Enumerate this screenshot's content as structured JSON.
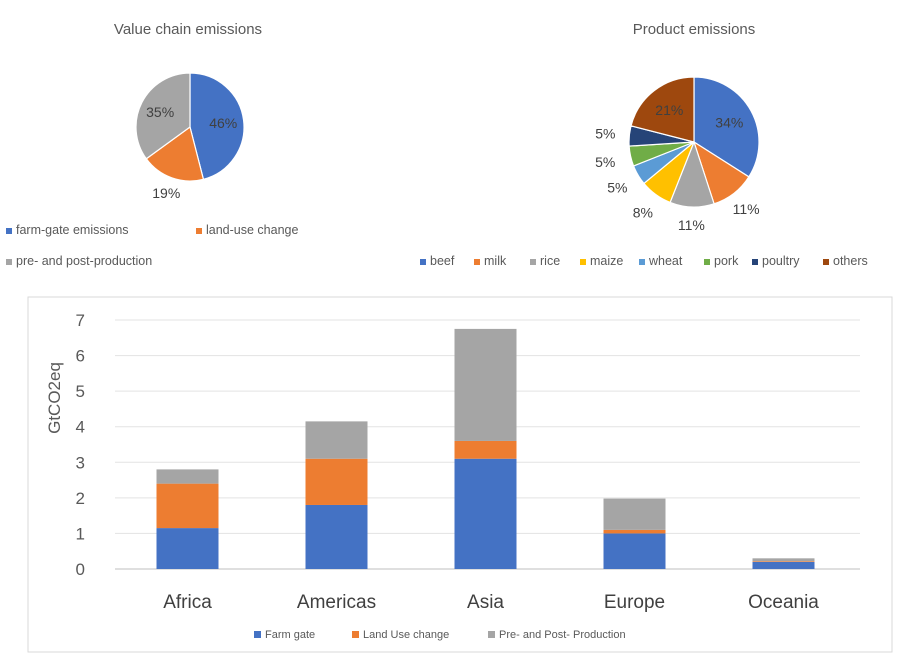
{
  "chart_data": [
    {
      "type": "pie",
      "title": "Value chain emissions",
      "slices": [
        {
          "label": "farm-gate emissions",
          "value": 46,
          "color": "#4472C4"
        },
        {
          "label": "land-use change",
          "value": 19,
          "color": "#ED7D31"
        },
        {
          "label": "pre- and post-production",
          "value": 35,
          "color": "#A5A5A5"
        }
      ],
      "slice_labels": [
        "46%",
        "19%",
        "35%"
      ],
      "legend": "bottom"
    },
    {
      "type": "pie",
      "title": "Product emissions",
      "slices": [
        {
          "label": "beef",
          "value": 34,
          "color": "#4472C4"
        },
        {
          "label": "milk",
          "value": 11,
          "color": "#ED7D31"
        },
        {
          "label": "rice",
          "value": 11,
          "color": "#A5A5A5"
        },
        {
          "label": "maize",
          "value": 8,
          "color": "#FFC000"
        },
        {
          "label": "wheat",
          "value": 5,
          "color": "#5B9BD5"
        },
        {
          "label": "pork",
          "value": 5,
          "color": "#70AD47"
        },
        {
          "label": "poultry",
          "value": 5,
          "color": "#264478"
        },
        {
          "label": "others",
          "value": 21,
          "color": "#9E480E"
        }
      ],
      "slice_labels": [
        "34%",
        "11%",
        "11%",
        "8%",
        "5%",
        "5%",
        "5%",
        "21%"
      ],
      "legend": "bottom"
    },
    {
      "type": "bar",
      "stacked": true,
      "title": "",
      "xlabel": "",
      "ylabel": "GtCO2eq",
      "ylim": [
        0,
        7
      ],
      "yticks": [
        "0",
        "1",
        "2",
        "3",
        "4",
        "5",
        "6",
        "7"
      ],
      "grid": true,
      "legend": "bottom",
      "categories": [
        "Africa",
        "Americas",
        "Asia",
        "Europe",
        "Oceania"
      ],
      "series": [
        {
          "name": "Farm gate",
          "color": "#4472C4",
          "values": [
            1.15,
            1.8,
            3.1,
            1.0,
            0.2
          ]
        },
        {
          "name": "Land Use change",
          "color": "#ED7D31",
          "values": [
            1.25,
            1.3,
            0.5,
            0.1,
            0.02
          ]
        },
        {
          "name": "Pre- and Post- Production",
          "color": "#A5A5A5",
          "values": [
            0.4,
            1.05,
            3.15,
            0.88,
            0.08
          ]
        }
      ]
    }
  ]
}
